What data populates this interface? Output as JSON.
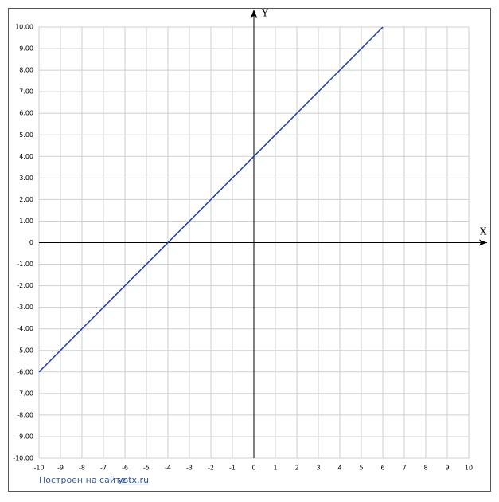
{
  "chart_data": {
    "type": "line",
    "xlabel": "X",
    "ylabel": "Y",
    "x": [
      -10,
      6
    ],
    "values": [
      -6,
      10
    ],
    "color": "#1f3fa8",
    "xlim": [
      -10,
      10
    ],
    "ylim": [
      -10,
      10
    ],
    "xticks": [
      -10,
      -9,
      -8,
      -7,
      -6,
      -5,
      -4,
      -3,
      -2,
      -1,
      0,
      1,
      2,
      3,
      4,
      5,
      6,
      7,
      8,
      9,
      10
    ],
    "yticks": [
      {
        "value": 10,
        "label": "10.00"
      },
      {
        "value": 9,
        "label": "9.00"
      },
      {
        "value": 8,
        "label": "8.00"
      },
      {
        "value": 7,
        "label": "7.00"
      },
      {
        "value": 6,
        "label": "6.00"
      },
      {
        "value": 5,
        "label": "5.00"
      },
      {
        "value": 4,
        "label": "4.00"
      },
      {
        "value": 3,
        "label": "3.00"
      },
      {
        "value": 2,
        "label": "2.00"
      },
      {
        "value": 1,
        "label": "1.00"
      },
      0,
      {
        "value": -1,
        "label": "-1.00"
      },
      {
        "value": -2,
        "label": "-2.00"
      },
      {
        "value": -3,
        "label": "-3.00"
      },
      {
        "value": -4,
        "label": "-4.00"
      },
      {
        "value": -5,
        "label": "-5.00"
      },
      {
        "value": -6,
        "label": "-6.00"
      },
      {
        "value": -7,
        "label": "-7.00"
      },
      {
        "value": -8,
        "label": "-8.00"
      },
      {
        "value": -9,
        "label": "-9.00"
      },
      {
        "value": -10,
        "label": "-10.00"
      }
    ],
    "grid": true
  },
  "footer": {
    "prefix": "Построен на сайте",
    "link": "yotx.ru"
  }
}
